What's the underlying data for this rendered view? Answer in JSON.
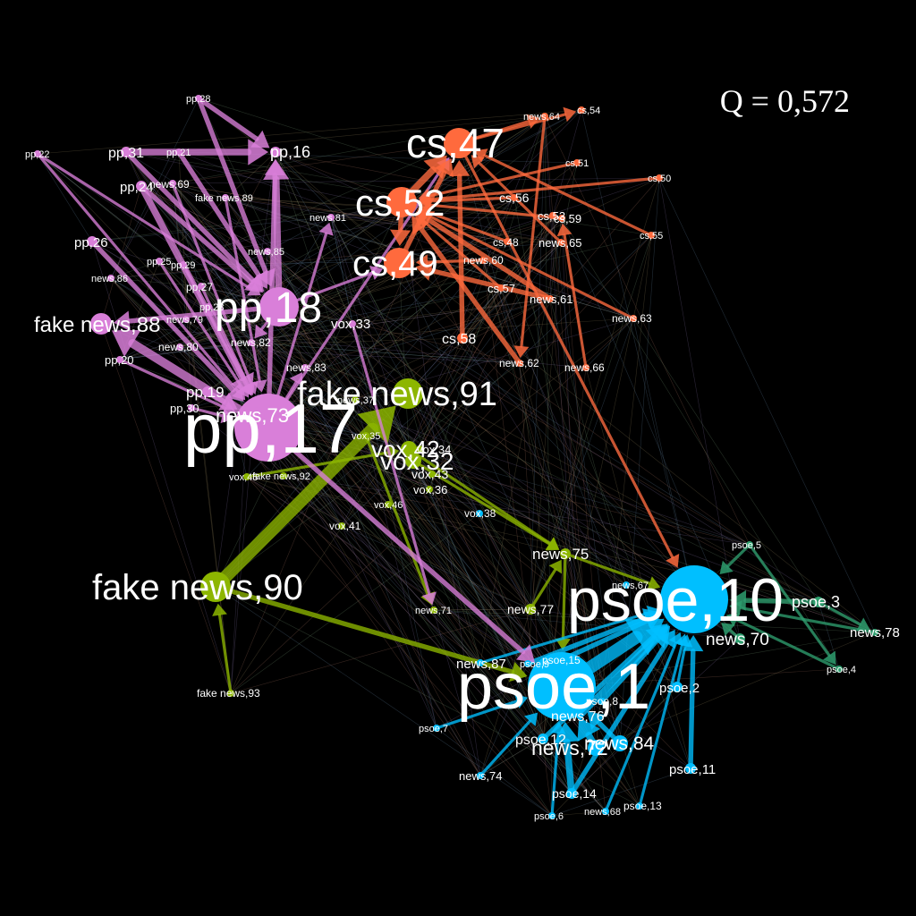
{
  "modularity_label": "Q = 0,572",
  "colors": {
    "pp": "#d97fd9",
    "cs": "#ff6a3d",
    "vox": "#8db600",
    "psoe": "#00bfff",
    "green": "#2e9e6e",
    "label": "#ffffff",
    "background": "#000000"
  },
  "nodes": [
    {
      "id": "pp,17",
      "label": "pp,17",
      "group": "pp",
      "weight": 10
    },
    {
      "id": "pp,18",
      "label": "pp,18",
      "group": "pp",
      "weight": 7
    },
    {
      "id": "pp,16",
      "label": "pp,16",
      "group": "pp",
      "weight": 2
    },
    {
      "id": "pp,28",
      "label": "pp,28",
      "group": "pp",
      "weight": 1
    },
    {
      "id": "pp,21",
      "label": "pp,21",
      "group": "pp",
      "weight": 1
    },
    {
      "id": "pp,22",
      "label": "pp,22",
      "group": "pp",
      "weight": 1
    },
    {
      "id": "pp,31",
      "label": "pp,31",
      "group": "pp",
      "weight": 2
    },
    {
      "id": "pp,24",
      "label": "pp,24",
      "group": "pp",
      "weight": 2
    },
    {
      "id": "news,69",
      "label": "news,69",
      "group": "pp",
      "weight": 1
    },
    {
      "id": "fake news,89",
      "label": "fake news,89",
      "group": "pp",
      "weight": 1
    },
    {
      "id": "news,81",
      "label": "news,81",
      "group": "pp",
      "weight": 1
    },
    {
      "id": "pp,26",
      "label": "pp,26",
      "group": "pp",
      "weight": 2
    },
    {
      "id": "news,85",
      "label": "news,85",
      "group": "pp",
      "weight": 1
    },
    {
      "id": "pp,25",
      "label": "pp,25",
      "group": "pp",
      "weight": 1
    },
    {
      "id": "pp,29",
      "label": "pp,29",
      "group": "pp",
      "weight": 1
    },
    {
      "id": "news,86",
      "label": "news,86",
      "group": "pp",
      "weight": 1
    },
    {
      "id": "pp,27",
      "label": "pp,27",
      "group": "pp",
      "weight": 1
    },
    {
      "id": "pp,23",
      "label": "pp,23",
      "group": "pp",
      "weight": 1
    },
    {
      "id": "fake news,88",
      "label": "fake news,88",
      "group": "pp",
      "weight": 4
    },
    {
      "id": "news,79",
      "label": "news,79",
      "group": "pp",
      "weight": 1
    },
    {
      "id": "news,80",
      "label": "news,80",
      "group": "pp",
      "weight": 1
    },
    {
      "id": "news,82",
      "label": "news,82",
      "group": "pp",
      "weight": 1
    },
    {
      "id": "pp,20",
      "label": "pp,20",
      "group": "pp",
      "weight": 1
    },
    {
      "id": "news,83",
      "label": "news,83",
      "group": "pp",
      "weight": 1
    },
    {
      "id": "pp,19",
      "label": "pp,19",
      "group": "pp",
      "weight": 2
    },
    {
      "id": "pp,30",
      "label": "pp,30",
      "group": "pp",
      "weight": 1
    },
    {
      "id": "news,73",
      "label": "news,73",
      "group": "pp",
      "weight": 3
    },
    {
      "id": "vox,33",
      "label": "vox,33",
      "group": "pp",
      "weight": 1
    },
    {
      "id": "cs,47",
      "label": "cs,47",
      "group": "cs",
      "weight": 6
    },
    {
      "id": "cs,52",
      "label": "cs,52",
      "group": "cs",
      "weight": 6
    },
    {
      "id": "cs,49",
      "label": "cs,49",
      "group": "cs",
      "weight": 6
    },
    {
      "id": "news,64",
      "label": "news,64",
      "group": "cs",
      "weight": 1
    },
    {
      "id": "cs,54",
      "label": "cs,54",
      "group": "cs",
      "weight": 1
    },
    {
      "id": "cs,51",
      "label": "cs,51",
      "group": "cs",
      "weight": 1
    },
    {
      "id": "cs,50",
      "label": "cs,50",
      "group": "cs",
      "weight": 1
    },
    {
      "id": "cs,56",
      "label": "cs,56",
      "group": "cs",
      "weight": 1
    },
    {
      "id": "cs,53",
      "label": "cs,53",
      "group": "cs",
      "weight": 1
    },
    {
      "id": "cs,59",
      "label": "cs,59",
      "group": "cs",
      "weight": 1
    },
    {
      "id": "cs,55",
      "label": "cs,55",
      "group": "cs",
      "weight": 1
    },
    {
      "id": "news,65",
      "label": "news,65",
      "group": "cs",
      "weight": 1
    },
    {
      "id": "cs,48",
      "label": "cs,48",
      "group": "cs",
      "weight": 1
    },
    {
      "id": "news,60",
      "label": "news,60",
      "group": "cs",
      "weight": 1
    },
    {
      "id": "cs,57",
      "label": "cs,57",
      "group": "cs",
      "weight": 1
    },
    {
      "id": "news,61",
      "label": "news,61",
      "group": "cs",
      "weight": 1
    },
    {
      "id": "news,63",
      "label": "news,63",
      "group": "cs",
      "weight": 1
    },
    {
      "id": "cs,58",
      "label": "cs,58",
      "group": "cs",
      "weight": 2
    },
    {
      "id": "news,62",
      "label": "news,62",
      "group": "cs",
      "weight": 1
    },
    {
      "id": "news,66",
      "label": "news,66",
      "group": "cs",
      "weight": 1
    },
    {
      "id": "fake news,91",
      "label": "fake news,91",
      "group": "vox",
      "weight": 6
    },
    {
      "id": "fake news,90",
      "label": "fake news,90",
      "group": "vox",
      "weight": 6
    },
    {
      "id": "news,37",
      "label": "news,37",
      "group": "vox",
      "weight": 1
    },
    {
      "id": "vox,35",
      "label": "vox,35",
      "group": "vox",
      "weight": 1
    },
    {
      "id": "vox,42",
      "label": "vox,42",
      "group": "vox",
      "weight": 3
    },
    {
      "id": "vox,34",
      "label": "vox,34",
      "group": "vox",
      "weight": 1
    },
    {
      "id": "vox,32",
      "label": "vox,32",
      "group": "vox",
      "weight": 3
    },
    {
      "id": "vox,43",
      "label": "vox,43",
      "group": "vox",
      "weight": 1
    },
    {
      "id": "vox,36",
      "label": "vox,36",
      "group": "vox",
      "weight": 1
    },
    {
      "id": "vox,45",
      "label": "vox,45",
      "group": "vox",
      "weight": 1
    },
    {
      "id": "fake news,92",
      "label": "fake news,92",
      "group": "vox",
      "weight": 1
    },
    {
      "id": "vox,46",
      "label": "vox,46",
      "group": "vox",
      "weight": 1
    },
    {
      "id": "vox,41",
      "label": "vox,41",
      "group": "vox",
      "weight": 1
    },
    {
      "id": "vox,38",
      "label": "vox,38",
      "group": "psoe",
      "weight": 1
    },
    {
      "id": "news,71",
      "label": "news,71",
      "group": "vox",
      "weight": 1
    },
    {
      "id": "news,77",
      "label": "news,77",
      "group": "vox",
      "weight": 2
    },
    {
      "id": "news,75",
      "label": "news,75",
      "group": "vox",
      "weight": 2
    },
    {
      "id": "fake news,93",
      "label": "fake news,93",
      "group": "vox",
      "weight": 1
    },
    {
      "id": "psoe,10",
      "label": "psoe,10",
      "group": "psoe",
      "weight": 10
    },
    {
      "id": "psoe,1",
      "label": "psoe,1",
      "group": "psoe",
      "weight": 10
    },
    {
      "id": "psoe,5",
      "label": "psoe,5",
      "group": "green",
      "weight": 1
    },
    {
      "id": "psoe,3",
      "label": "psoe,3",
      "group": "green",
      "weight": 2
    },
    {
      "id": "news,78",
      "label": "news,78",
      "group": "green",
      "weight": 1
    },
    {
      "id": "news,70",
      "label": "news,70",
      "group": "green",
      "weight": 2
    },
    {
      "id": "psoe,4",
      "label": "psoe,4",
      "group": "green",
      "weight": 1
    },
    {
      "id": "news,67",
      "label": "news,67",
      "group": "psoe",
      "weight": 1
    },
    {
      "id": "news,87",
      "label": "news,87",
      "group": "psoe",
      "weight": 1
    },
    {
      "id": "psoe,9",
      "label": "psoe,9",
      "group": "psoe",
      "weight": 1
    },
    {
      "id": "psoe,15",
      "label": "psoe,15",
      "group": "psoe",
      "weight": 1
    },
    {
      "id": "psoe,2",
      "label": "psoe,2",
      "group": "psoe",
      "weight": 2
    },
    {
      "id": "psoe,8",
      "label": "psoe,8",
      "group": "psoe",
      "weight": 1
    },
    {
      "id": "news,76",
      "label": "news,76",
      "group": "psoe",
      "weight": 1
    },
    {
      "id": "psoe,7",
      "label": "psoe,7",
      "group": "psoe",
      "weight": 1
    },
    {
      "id": "psoe,12",
      "label": "psoe,12",
      "group": "psoe",
      "weight": 2
    },
    {
      "id": "news,72",
      "label": "news,72",
      "group": "psoe",
      "weight": 3
    },
    {
      "id": "news,84",
      "label": "news,84",
      "group": "psoe",
      "weight": 3
    },
    {
      "id": "psoe,11",
      "label": "psoe,11",
      "group": "psoe",
      "weight": 2
    },
    {
      "id": "news,74",
      "label": "news,74",
      "group": "psoe",
      "weight": 1
    },
    {
      "id": "psoe,14",
      "label": "psoe,14",
      "group": "psoe",
      "weight": 2
    },
    {
      "id": "psoe,6",
      "label": "psoe,6",
      "group": "psoe",
      "weight": 1
    },
    {
      "id": "news,68",
      "label": "news,68",
      "group": "psoe",
      "weight": 1
    },
    {
      "id": "psoe,13",
      "label": "psoe,13",
      "group": "psoe",
      "weight": 1
    }
  ],
  "edges": [
    {
      "from": "pp,18",
      "to": "pp,16",
      "weight": 3
    },
    {
      "from": "pp,17",
      "to": "pp,16",
      "weight": 2
    },
    {
      "from": "pp,31",
      "to": "pp,16",
      "weight": 3
    },
    {
      "from": "pp,28",
      "to": "pp,16",
      "weight": 2
    },
    {
      "from": "pp,24",
      "to": "pp,17",
      "weight": 3
    },
    {
      "from": "pp,24",
      "to": "pp,18",
      "weight": 2
    },
    {
      "from": "pp,31",
      "to": "pp,18",
      "weight": 2
    },
    {
      "from": "pp,28",
      "to": "pp,18",
      "weight": 2
    },
    {
      "from": "pp,21",
      "to": "pp,18",
      "weight": 2
    },
    {
      "from": "pp,17",
      "to": "fake news,88",
      "weight": 4
    },
    {
      "from": "pp,18",
      "to": "fake news,88",
      "weight": 2
    },
    {
      "from": "pp,26",
      "to": "pp,17",
      "weight": 2
    },
    {
      "from": "pp,25",
      "to": "pp,17",
      "weight": 1
    },
    {
      "from": "pp,29",
      "to": "pp,17",
      "weight": 1
    },
    {
      "from": "pp,27",
      "to": "pp,17",
      "weight": 1
    },
    {
      "from": "pp,19",
      "to": "pp,17",
      "weight": 2
    },
    {
      "from": "pp,30",
      "to": "pp,17",
      "weight": 1
    },
    {
      "from": "pp,20",
      "to": "pp,17",
      "weight": 1
    },
    {
      "from": "pp,22",
      "to": "pp,17",
      "weight": 1
    },
    {
      "from": "pp,22",
      "to": "pp,18",
      "weight": 1
    },
    {
      "from": "news,69",
      "to": "pp,17",
      "weight": 1
    },
    {
      "from": "fake news,89",
      "to": "pp,17",
      "weight": 1
    },
    {
      "from": "pp,17",
      "to": "news,81",
      "weight": 1
    },
    {
      "from": "pp,17",
      "to": "news,83",
      "weight": 1
    },
    {
      "from": "pp,18",
      "to": "news,82",
      "weight": 1
    },
    {
      "from": "pp,18",
      "to": "cs,49",
      "weight": 1
    },
    {
      "from": "pp,17",
      "to": "cs,47",
      "weight": 1
    },
    {
      "from": "cs,52",
      "to": "cs,47",
      "weight": 3
    },
    {
      "from": "cs,49",
      "to": "cs,47",
      "weight": 2
    },
    {
      "from": "cs,52",
      "to": "cs,49",
      "weight": 2
    },
    {
      "from": "cs,47",
      "to": "news,64",
      "weight": 1
    },
    {
      "from": "cs,47",
      "to": "cs,54",
      "weight": 1
    },
    {
      "from": "cs,58",
      "to": "cs,47",
      "weight": 2
    },
    {
      "from": "news,61",
      "to": "cs,52",
      "weight": 2
    },
    {
      "from": "news,61",
      "to": "cs,49",
      "weight": 2
    },
    {
      "from": "news,62",
      "to": "cs,52",
      "weight": 2
    },
    {
      "from": "cs,57",
      "to": "cs,52",
      "weight": 1
    },
    {
      "from": "cs,48",
      "to": "cs,52",
      "weight": 1
    },
    {
      "from": "cs,56",
      "to": "cs,52",
      "weight": 1
    },
    {
      "from": "cs,59",
      "to": "cs,52",
      "weight": 1
    },
    {
      "from": "news,63",
      "to": "cs,52",
      "weight": 1
    },
    {
      "from": "news,66",
      "to": "cs,59",
      "weight": 1
    },
    {
      "from": "news,60",
      "to": "cs,49",
      "weight": 1
    },
    {
      "from": "cs,51",
      "to": "cs,52",
      "weight": 1
    },
    {
      "from": "cs,50",
      "to": "cs,52",
      "weight": 1
    },
    {
      "from": "cs,55",
      "to": "cs,47",
      "weight": 1
    },
    {
      "from": "news,65",
      "to": "cs,47",
      "weight": 1
    },
    {
      "from": "news,64",
      "to": "news,62",
      "weight": 1
    },
    {
      "from": "fake news,90",
      "to": "fake news,91",
      "weight": 6
    },
    {
      "from": "fake news,90",
      "to": "psoe,1",
      "weight": 2
    },
    {
      "from": "fake news,93",
      "to": "fake news,90",
      "weight": 1
    },
    {
      "from": "vox,42",
      "to": "news,75",
      "weight": 1
    },
    {
      "from": "vox,32",
      "to": "news,75",
      "weight": 1
    },
    {
      "from": "news,77",
      "to": "news,75",
      "weight": 1
    },
    {
      "from": "vox,45",
      "to": "vox,42",
      "weight": 1
    },
    {
      "from": "vox,35",
      "to": "news,71",
      "weight": 1
    },
    {
      "from": "vox,33",
      "to": "news,71",
      "weight": 1
    },
    {
      "from": "news,75",
      "to": "psoe,1",
      "weight": 1
    },
    {
      "from": "psoe,1",
      "to": "psoe,10",
      "weight": 6
    },
    {
      "from": "news,76",
      "to": "psoe,10",
      "weight": 3
    },
    {
      "from": "psoe,8",
      "to": "psoe,10",
      "weight": 2
    },
    {
      "from": "psoe,9",
      "to": "psoe,10",
      "weight": 2
    },
    {
      "from": "psoe,15",
      "to": "psoe,10",
      "weight": 2
    },
    {
      "from": "news,87",
      "to": "psoe,10",
      "weight": 1
    },
    {
      "from": "psoe,12",
      "to": "psoe,10",
      "weight": 2
    },
    {
      "from": "news,72",
      "to": "psoe,1",
      "weight": 3
    },
    {
      "from": "news,84",
      "to": "psoe,1",
      "weight": 2
    },
    {
      "from": "psoe,14",
      "to": "psoe,1",
      "weight": 3
    },
    {
      "from": "psoe,14",
      "to": "psoe,10",
      "weight": 2
    },
    {
      "from": "psoe,11",
      "to": "psoe,10",
      "weight": 2
    },
    {
      "from": "psoe,2",
      "to": "psoe,10",
      "weight": 1
    },
    {
      "from": "psoe,13",
      "to": "psoe,10",
      "weight": 1
    },
    {
      "from": "news,68",
      "to": "psoe,10",
      "weight": 1
    },
    {
      "from": "psoe,6",
      "to": "psoe,1",
      "weight": 1
    },
    {
      "from": "news,74",
      "to": "psoe,1",
      "weight": 1
    },
    {
      "from": "psoe,7",
      "to": "psoe,1",
      "weight": 1
    },
    {
      "from": "psoe,3",
      "to": "psoe,10",
      "weight": 2
    },
    {
      "from": "news,70",
      "to": "psoe,10",
      "weight": 1
    },
    {
      "from": "psoe,5",
      "to": "psoe,10",
      "weight": 1
    },
    {
      "from": "news,78",
      "to": "psoe,10",
      "weight": 1
    },
    {
      "from": "psoe,4",
      "to": "psoe,10",
      "weight": 1
    },
    {
      "from": "psoe,5",
      "to": "psoe,4",
      "weight": 1
    },
    {
      "from": "psoe,3",
      "to": "news,78",
      "weight": 1
    },
    {
      "from": "news,75",
      "to": "psoe,10",
      "weight": 1
    },
    {
      "from": "pp,17",
      "to": "psoe,1",
      "weight": 2
    },
    {
      "from": "cs,47",
      "to": "psoe,10",
      "weight": 1
    }
  ]
}
